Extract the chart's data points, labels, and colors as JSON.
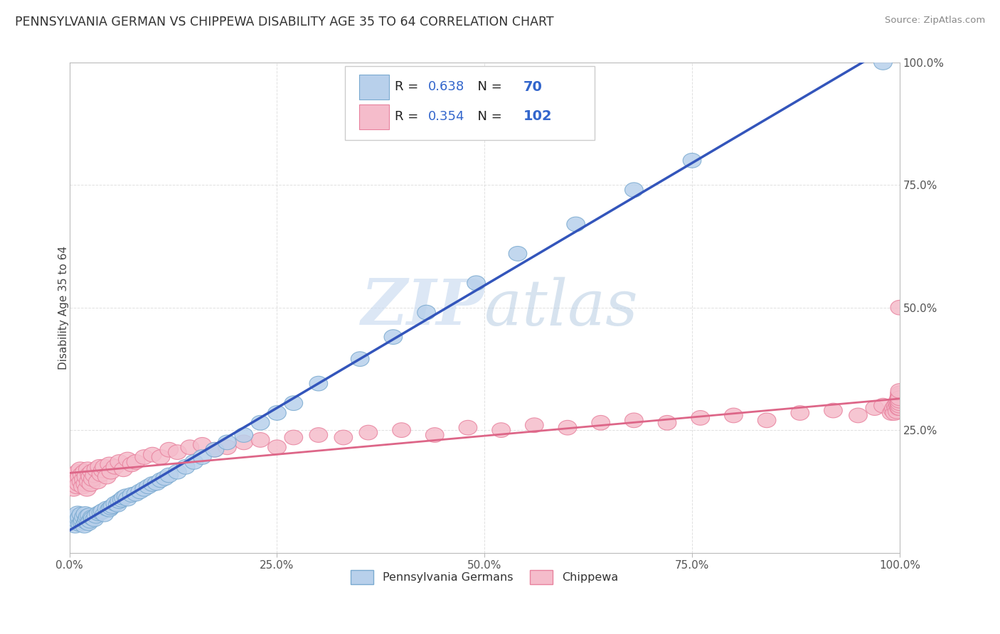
{
  "title": "PENNSYLVANIA GERMAN VS CHIPPEWA DISABILITY AGE 35 TO 64 CORRELATION CHART",
  "source": "Source: ZipAtlas.com",
  "ylabel": "Disability Age 35 to 64",
  "watermark": "ZIPAtlas",
  "blue_R": 0.638,
  "blue_N": 70,
  "pink_R": 0.354,
  "pink_N": 102,
  "xlim": [
    0.0,
    1.0
  ],
  "ylim": [
    0.0,
    1.0
  ],
  "xticks": [
    0.0,
    0.25,
    0.5,
    0.75,
    1.0
  ],
  "yticks": [
    0.0,
    0.25,
    0.5,
    0.75,
    1.0
  ],
  "xticklabels": [
    "0.0%",
    "25.0%",
    "50.0%",
    "75.0%",
    "100.0%"
  ],
  "yticklabels_right": [
    "",
    "25.0%",
    "50.0%",
    "75.0%",
    "100.0%"
  ],
  "blue_fill": "#b8d0eb",
  "blue_edge": "#7aaad0",
  "pink_fill": "#f5bccb",
  "pink_edge": "#e8829e",
  "blue_line_color": "#3355bb",
  "pink_line_color": "#dd6688",
  "grid_color": "#cccccc",
  "background_color": "#ffffff",
  "title_color": "#333333",
  "legend_text_R_color": "#222222",
  "legend_text_N_color": "#3366cc",
  "blue_x": [
    0.005,
    0.007,
    0.008,
    0.009,
    0.01,
    0.01,
    0.011,
    0.012,
    0.013,
    0.014,
    0.015,
    0.016,
    0.017,
    0.018,
    0.019,
    0.02,
    0.021,
    0.022,
    0.023,
    0.024,
    0.025,
    0.027,
    0.028,
    0.03,
    0.032,
    0.035,
    0.038,
    0.04,
    0.042,
    0.045,
    0.048,
    0.05,
    0.052,
    0.055,
    0.058,
    0.06,
    0.063,
    0.065,
    0.068,
    0.07,
    0.075,
    0.08,
    0.085,
    0.09,
    0.095,
    0.1,
    0.105,
    0.11,
    0.115,
    0.12,
    0.13,
    0.14,
    0.15,
    0.16,
    0.175,
    0.19,
    0.21,
    0.23,
    0.25,
    0.27,
    0.3,
    0.35,
    0.39,
    0.43,
    0.49,
    0.54,
    0.61,
    0.68,
    0.75,
    0.98
  ],
  "blue_y": [
    0.06,
    0.055,
    0.07,
    0.065,
    0.075,
    0.08,
    0.068,
    0.072,
    0.058,
    0.078,
    0.062,
    0.066,
    0.073,
    0.055,
    0.079,
    0.063,
    0.069,
    0.074,
    0.06,
    0.076,
    0.065,
    0.072,
    0.07,
    0.068,
    0.075,
    0.08,
    0.082,
    0.085,
    0.078,
    0.09,
    0.088,
    0.092,
    0.095,
    0.1,
    0.098,
    0.105,
    0.108,
    0.112,
    0.115,
    0.11,
    0.118,
    0.12,
    0.125,
    0.13,
    0.135,
    0.14,
    0.142,
    0.148,
    0.152,
    0.158,
    0.165,
    0.175,
    0.185,
    0.195,
    0.21,
    0.225,
    0.24,
    0.265,
    0.285,
    0.305,
    0.345,
    0.395,
    0.44,
    0.49,
    0.55,
    0.61,
    0.67,
    0.74,
    0.8,
    1.0
  ],
  "pink_x": [
    0.003,
    0.005,
    0.006,
    0.007,
    0.008,
    0.009,
    0.01,
    0.01,
    0.011,
    0.012,
    0.013,
    0.014,
    0.015,
    0.016,
    0.017,
    0.018,
    0.019,
    0.02,
    0.021,
    0.022,
    0.023,
    0.024,
    0.025,
    0.026,
    0.027,
    0.028,
    0.03,
    0.032,
    0.034,
    0.036,
    0.038,
    0.04,
    0.042,
    0.045,
    0.048,
    0.05,
    0.055,
    0.06,
    0.065,
    0.07,
    0.075,
    0.08,
    0.09,
    0.1,
    0.11,
    0.12,
    0.13,
    0.145,
    0.16,
    0.175,
    0.19,
    0.21,
    0.23,
    0.25,
    0.27,
    0.3,
    0.33,
    0.36,
    0.4,
    0.44,
    0.48,
    0.52,
    0.56,
    0.6,
    0.64,
    0.68,
    0.72,
    0.76,
    0.8,
    0.84,
    0.88,
    0.92,
    0.95,
    0.97,
    0.98,
    0.99,
    0.992,
    0.993,
    0.994,
    0.995,
    0.996,
    0.997,
    0.997,
    0.998,
    0.998,
    0.999,
    0.999,
    0.999,
    1.0,
    1.0,
    1.0,
    1.0,
    1.0,
    1.0,
    1.0,
    1.0,
    1.0,
    1.0,
    1.0,
    1.0,
    1.0,
    1.0
  ],
  "pink_y": [
    0.14,
    0.13,
    0.155,
    0.145,
    0.16,
    0.135,
    0.15,
    0.165,
    0.14,
    0.155,
    0.17,
    0.145,
    0.16,
    0.135,
    0.15,
    0.165,
    0.14,
    0.155,
    0.13,
    0.17,
    0.145,
    0.16,
    0.155,
    0.14,
    0.165,
    0.15,
    0.158,
    0.17,
    0.145,
    0.175,
    0.16,
    0.168,
    0.175,
    0.155,
    0.18,
    0.165,
    0.175,
    0.185,
    0.17,
    0.19,
    0.18,
    0.185,
    0.195,
    0.2,
    0.195,
    0.21,
    0.205,
    0.215,
    0.22,
    0.21,
    0.215,
    0.225,
    0.23,
    0.215,
    0.235,
    0.24,
    0.235,
    0.245,
    0.25,
    0.24,
    0.255,
    0.25,
    0.26,
    0.255,
    0.265,
    0.27,
    0.265,
    0.275,
    0.28,
    0.27,
    0.285,
    0.29,
    0.28,
    0.295,
    0.3,
    0.285,
    0.29,
    0.295,
    0.285,
    0.3,
    0.295,
    0.305,
    0.288,
    0.31,
    0.3,
    0.315,
    0.295,
    0.305,
    0.31,
    0.32,
    0.295,
    0.31,
    0.325,
    0.3,
    0.315,
    0.305,
    0.32,
    0.31,
    0.325,
    0.315,
    0.33,
    0.5
  ]
}
